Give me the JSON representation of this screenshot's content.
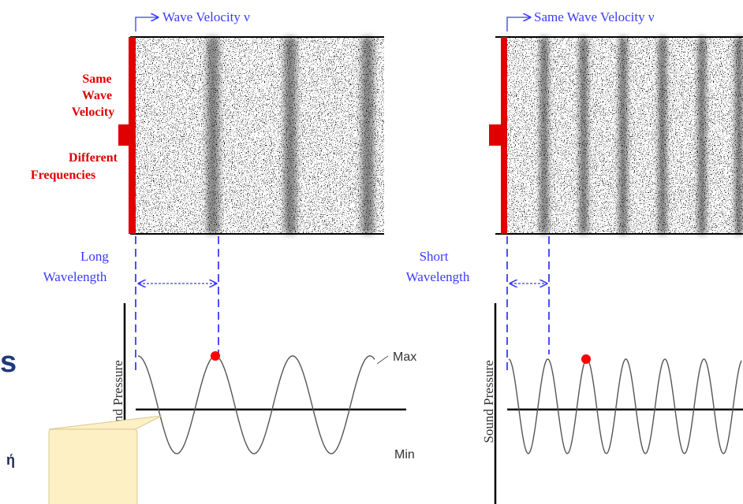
{
  "panels": [
    {
      "velocity_label": "Wave Velocity ν",
      "wavelength_label": [
        "Long",
        "Wavelength"
      ],
      "y_axis_label": "Sound Pressure",
      "max_label": "Max",
      "min_label": "Min"
    },
    {
      "velocity_label": "Same Wave Velocity ν",
      "wavelength_label": [
        "Short",
        "Wavelength"
      ],
      "y_axis_label": "Sound Pressure"
    }
  ],
  "side_label": {
    "lines": [
      "Same",
      "Wave",
      "Velocity",
      "Different",
      "Frequencies"
    ]
  },
  "fragments": {
    "heading": "s",
    "callout": "ή"
  }
}
